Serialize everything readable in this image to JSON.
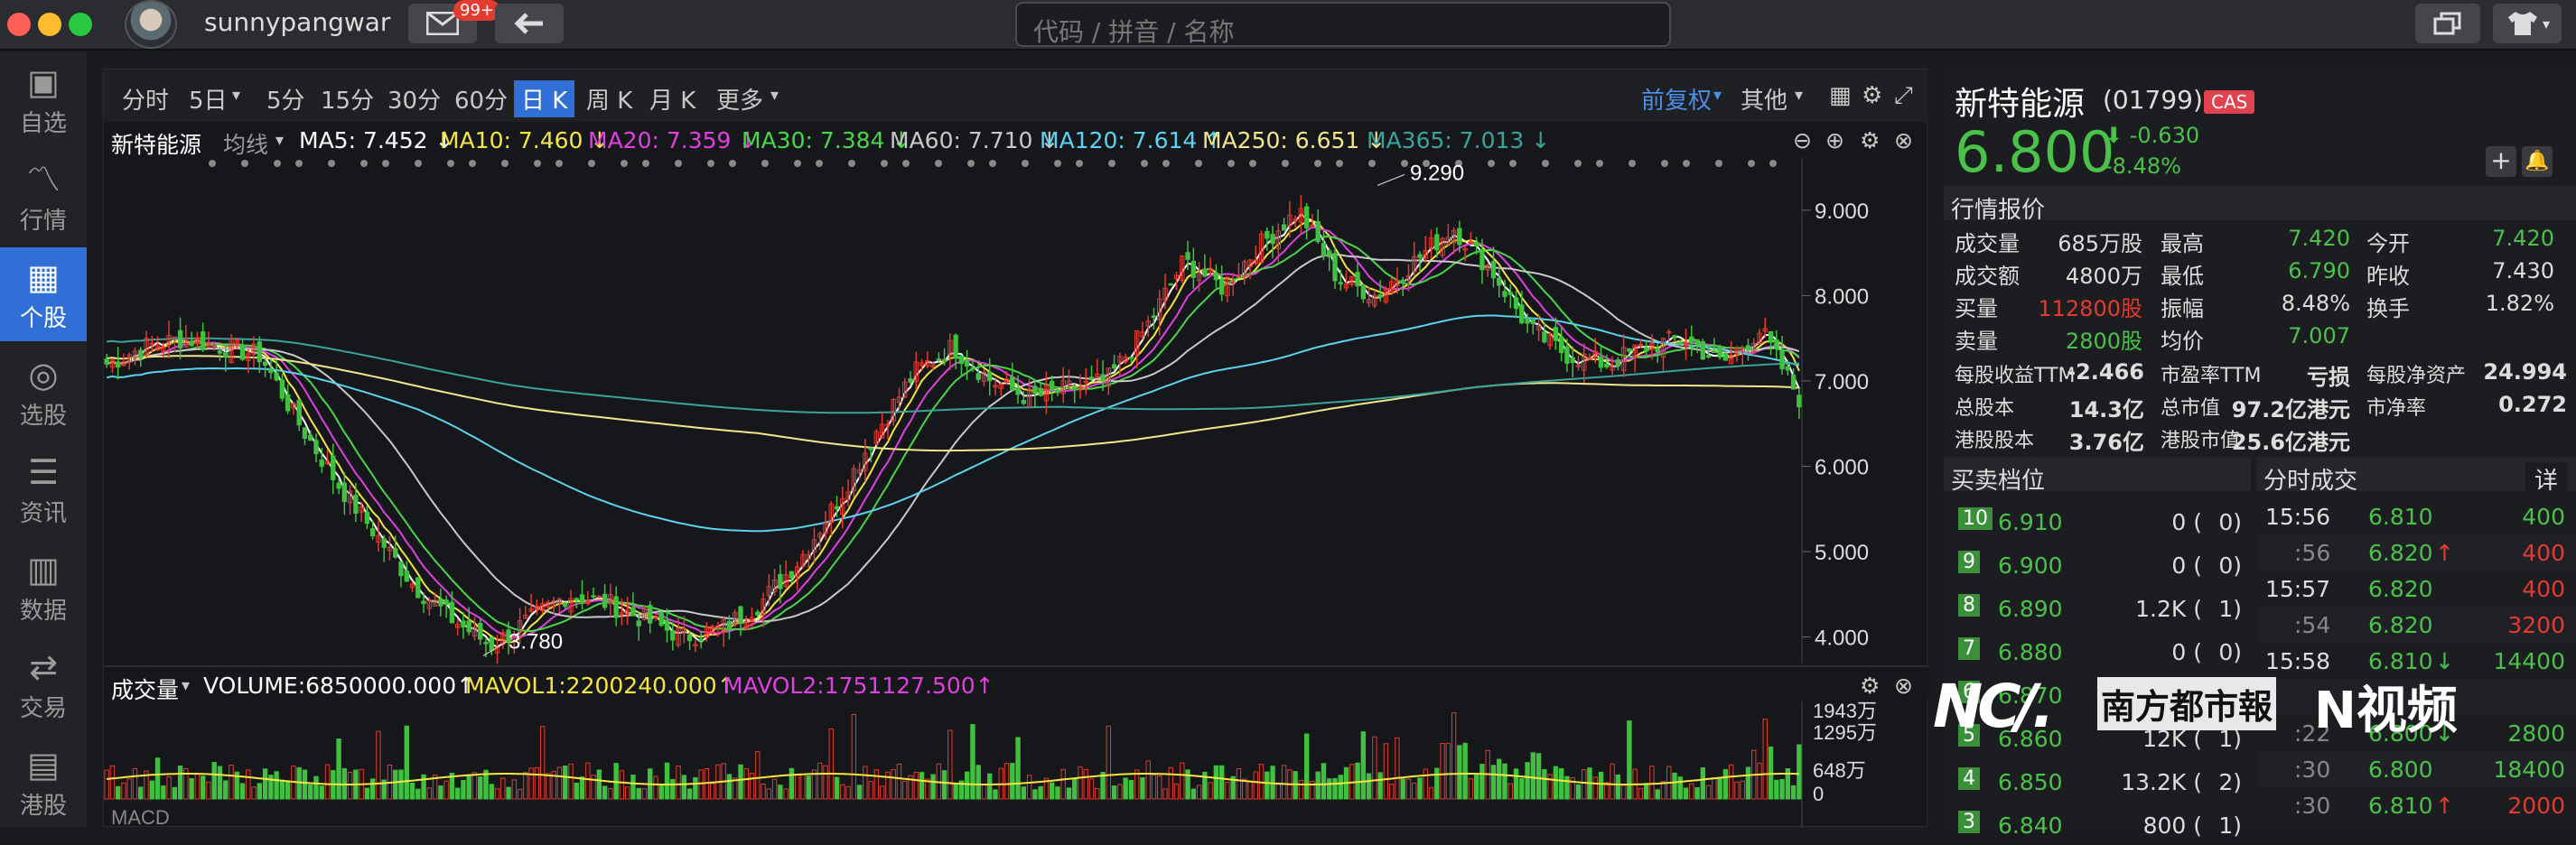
{
  "user": {
    "name": "sunnypangwar",
    "mail_badge": "99+"
  },
  "search": {
    "placeholder": "代码 / 拼音 / 名称"
  },
  "sidebar": {
    "items": [
      {
        "label": "自选",
        "icon": "watchlist-icon"
      },
      {
        "label": "行情",
        "icon": "market-icon"
      },
      {
        "label": "个股",
        "icon": "stock-icon",
        "active": true
      },
      {
        "label": "选股",
        "icon": "screener-icon"
      },
      {
        "label": "资讯",
        "icon": "news-icon"
      },
      {
        "label": "数据",
        "icon": "data-icon"
      },
      {
        "label": "交易",
        "icon": "trade-icon"
      },
      {
        "label": "港股",
        "icon": "hk-icon"
      }
    ]
  },
  "toolbar": {
    "periods": [
      "分时",
      "5日",
      "5分",
      "15分",
      "30分",
      "60分",
      "日 K",
      "周 K",
      "月 K",
      "更多"
    ],
    "active_period": "日 K",
    "adjust": "前复权",
    "other": "其他"
  },
  "chart_data": {
    "type": "candlestick",
    "stock_label": "新特能源",
    "ma_selector": "均线",
    "ma_legend": [
      {
        "label": "MA5: 7.452 ↓",
        "color": "#ffffff"
      },
      {
        "label": "MA10: 7.460 ↓",
        "color": "#f5e642"
      },
      {
        "label": "MA20: 7.359 ↓",
        "color": "#e040e0"
      },
      {
        "label": "MA30: 7.384 ↓",
        "color": "#4ad64a"
      },
      {
        "label": "MA60: 7.710 ↓",
        "color": "#c8c8c8"
      },
      {
        "label": "MA120: 7.614 ↑",
        "color": "#5ad2f0"
      },
      {
        "label": "MA250: 6.651 ↓",
        "color": "#f0e68c"
      },
      {
        "label": "MA365: 7.013 ↓",
        "color": "#3aa39a"
      }
    ],
    "y_axis_ticks": [
      "9.000",
      "8.000",
      "7.000",
      "6.000",
      "5.000",
      "4.000"
    ],
    "ylim": [
      3.9,
      9.4
    ],
    "annotations": {
      "high": "9.290",
      "low": "3.780"
    },
    "price_path_approx": [
      7.2,
      7.4,
      7.5,
      7.4,
      7.3,
      6.5,
      5.8,
      5.2,
      4.6,
      4.2,
      3.9,
      4.2,
      4.5,
      4.4,
      4.2,
      4.0,
      4.1,
      4.4,
      4.9,
      5.6,
      6.4,
      7.1,
      7.4,
      7.0,
      6.8,
      6.9,
      7.0,
      7.6,
      8.4,
      8.1,
      8.6,
      9.0,
      8.2,
      8.0,
      8.4,
      8.8,
      8.3,
      7.6,
      7.3,
      7.2,
      7.4,
      7.5,
      7.2,
      7.6,
      6.8
    ],
    "volume": {
      "label": "成交量",
      "volume_text": "VOLUME:6850000.000↑",
      "mavol1_text": "MAVOL1:2200240.000↑",
      "mavol2_text": "MAVOL2:1751127.500↑",
      "ticks": [
        "1943万",
        "1295万",
        "648万",
        "0"
      ]
    },
    "macd_label": "MACD"
  },
  "quote": {
    "name": "新特能源",
    "code": "(01799)",
    "tag": "CAS",
    "price": "6.800",
    "change": "-0.630",
    "change_pct": "-8.48%",
    "section_title": "行情报价",
    "rows": [
      [
        [
          "成交量",
          "685万股",
          "w"
        ],
        [
          "最高",
          "7.420",
          "g"
        ],
        [
          "今开",
          "7.420",
          "g"
        ]
      ],
      [
        [
          "成交额",
          "4800万",
          "w"
        ],
        [
          "最低",
          "6.790",
          "g"
        ],
        [
          "昨收",
          "7.430",
          "w"
        ]
      ],
      [
        [
          "买量",
          "112800股",
          "r"
        ],
        [
          "振幅",
          "8.48%",
          "w"
        ],
        [
          "换手",
          "1.82%",
          "w"
        ]
      ],
      [
        [
          "卖量",
          "2800股",
          "g"
        ],
        [
          "均价",
          "7.007",
          "g"
        ],
        [
          "",
          "",
          "w"
        ]
      ]
    ],
    "rows2": [
      [
        [
          "每股收益TTM",
          "-2.466"
        ],
        [
          "市盈率TTM",
          "亏损"
        ],
        [
          "每股净资产",
          "24.994"
        ]
      ],
      [
        [
          "总股本",
          "14.3亿"
        ],
        [
          "总市值",
          "97.2亿港元"
        ],
        [
          "市净率",
          "0.272"
        ]
      ],
      [
        [
          "港股股本",
          "3.76亿"
        ],
        [
          "港股市值",
          "25.6亿港元"
        ],
        [
          "",
          ""
        ]
      ]
    ]
  },
  "orderbook": {
    "title": "买卖档位",
    "levels": [
      {
        "lv": "10",
        "price": "6.910",
        "vol": "0 (",
        "cnt": "0)"
      },
      {
        "lv": "9",
        "price": "6.900",
        "vol": "0 (",
        "cnt": "0)"
      },
      {
        "lv": "8",
        "price": "6.890",
        "vol": "1.2K (",
        "cnt": "1)"
      },
      {
        "lv": "7",
        "price": "6.880",
        "vol": "0 (",
        "cnt": "0)"
      },
      {
        "lv": "6",
        "price": "6.870",
        "vol": "",
        "cnt": ""
      },
      {
        "lv": "5",
        "price": "6.860",
        "vol": "12K (",
        "cnt": "1)"
      },
      {
        "lv": "4",
        "price": "6.850",
        "vol": "13.2K (",
        "cnt": "2)"
      },
      {
        "lv": "3",
        "price": "6.840",
        "vol": "800 (",
        "cnt": "1)"
      }
    ]
  },
  "trades": {
    "title": "分时成交",
    "detail": "详",
    "rows": [
      {
        "t": "15:56",
        "p": "6.810",
        "arrow": "",
        "v": "400",
        "vc": "g"
      },
      {
        "t": ":56",
        "p": "6.820",
        "arrow": "↑",
        "v": "400",
        "vc": "r"
      },
      {
        "t": "15:57",
        "p": "6.820",
        "arrow": "",
        "v": "400",
        "vc": "r"
      },
      {
        "t": ":54",
        "p": "6.820",
        "arrow": "",
        "v": "3200",
        "vc": "r"
      },
      {
        "t": "15:58",
        "p": "6.810",
        "arrow": "↓",
        "v": "14400",
        "vc": "g"
      },
      {
        "t": "",
        "p": "",
        "arrow": "",
        "v": "",
        "vc": "g"
      },
      {
        "t": ":22",
        "p": "6.800",
        "arrow": "↓",
        "v": "2800",
        "vc": "g"
      },
      {
        "t": ":30",
        "p": "6.800",
        "arrow": "",
        "v": "18400",
        "vc": "g"
      },
      {
        "t": ":30",
        "p": "6.810",
        "arrow": "↑",
        "v": "2000",
        "vc": "r"
      }
    ]
  },
  "watermarks": {
    "left": "南方都市報",
    "right": "N视频"
  }
}
